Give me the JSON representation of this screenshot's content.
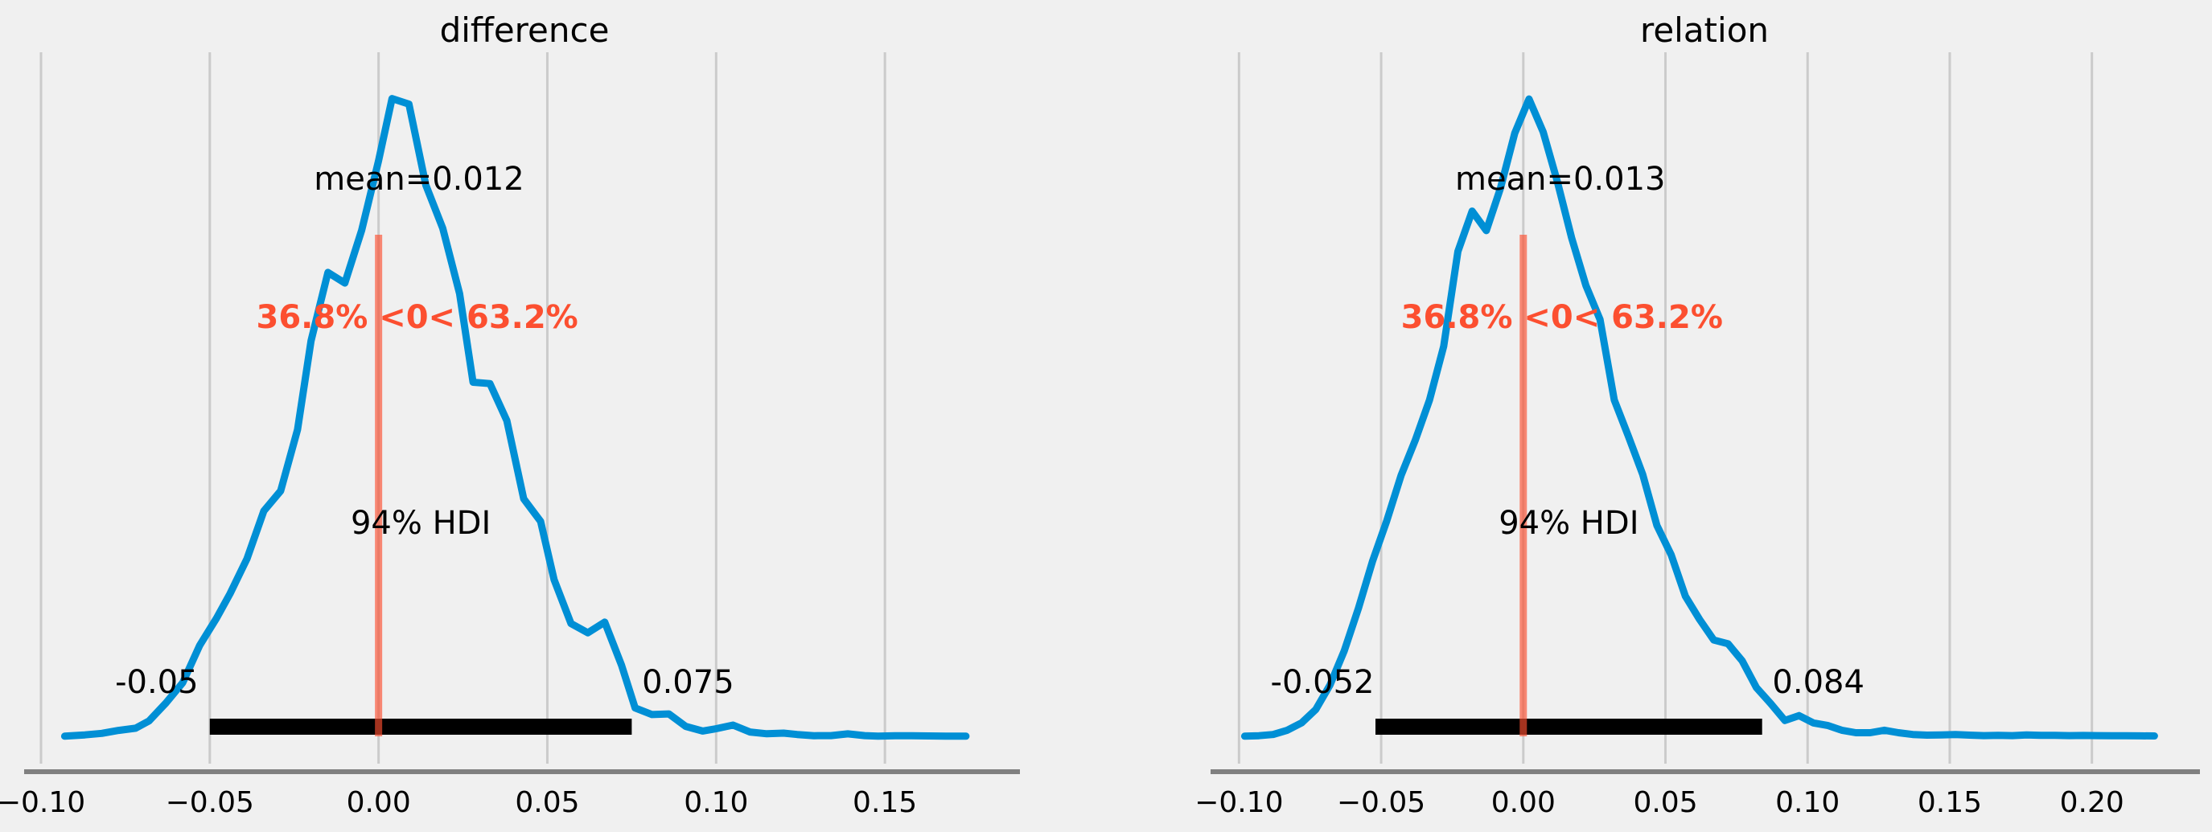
{
  "chart_data": [
    {
      "type": "area",
      "title": "difference",
      "xlim": [
        -0.105,
        0.19
      ],
      "x_ticks": [
        -0.1,
        -0.05,
        0.0,
        0.05,
        0.1,
        0.15
      ],
      "x_tick_labels": [
        "−0.10",
        "−0.05",
        "0.00",
        "0.05",
        "0.10",
        "0.15"
      ],
      "grid": true,
      "series": [
        {
          "x": [
            -0.093,
            -0.087,
            -0.082,
            -0.077,
            -0.072,
            -0.068,
            -0.063,
            -0.058,
            -0.053,
            -0.048,
            -0.044,
            -0.039,
            -0.034,
            -0.029,
            -0.024,
            -0.02,
            -0.015,
            -0.01,
            -0.005,
            0.0,
            0.004,
            0.009,
            0.014,
            0.019,
            0.024,
            0.028,
            0.033,
            0.038,
            0.043,
            0.048,
            0.052,
            0.057,
            0.062,
            0.067,
            0.072,
            0.076,
            0.081,
            0.086,
            0.091,
            0.096,
            0.1,
            0.105,
            0.11,
            0.115,
            0.12,
            0.124,
            0.129,
            0.134,
            0.139,
            0.144,
            0.148,
            0.153,
            0.158,
            0.163,
            0.168,
            0.174
          ],
          "y": [
            0.001,
            0.012,
            0.024,
            0.048,
            0.066,
            0.125,
            0.271,
            0.436,
            0.737,
            0.959,
            1.158,
            1.44,
            1.829,
            1.991,
            2.489,
            3.209,
            3.764,
            3.678,
            4.108,
            4.669,
            5.175,
            5.13,
            4.472,
            4.123,
            3.591,
            2.873,
            2.862,
            2.562,
            1.927,
            1.744,
            1.27,
            0.915,
            0.84,
            0.927,
            0.575,
            0.23,
            0.177,
            0.182,
            0.081,
            0.043,
            0.062,
            0.091,
            0.035,
            0.021,
            0.026,
            0.015,
            0.005,
            0.006,
            0.02,
            0.006,
            0.002,
            0.005,
            0.005,
            0.003,
            0.002,
            0.001
          ]
        }
      ],
      "ylim": [
        0,
        5.27
      ],
      "mean": 0.012,
      "mean_label": "mean=0.012",
      "ref_val": 0,
      "ref_label": "36.8% <0< 63.2%",
      "hdi": [
        -0.05,
        0.075
      ],
      "hdi_label": "94% HDI",
      "hdi_low_label": "-0.05",
      "hdi_high_label": "0.075"
    },
    {
      "type": "area",
      "title": "relation",
      "xlim": [
        -0.11,
        0.238
      ],
      "x_ticks": [
        -0.1,
        -0.05,
        0.0,
        0.05,
        0.1,
        0.15,
        0.2
      ],
      "x_tick_labels": [
        "−0.10",
        "−0.05",
        "0.00",
        "0.05",
        "0.10",
        "0.15",
        "0.20"
      ],
      "grid": true,
      "series": [
        {
          "x": [
            -0.098,
            -0.093,
            -0.088,
            -0.083,
            -0.078,
            -0.073,
            -0.068,
            -0.063,
            -0.058,
            -0.053,
            -0.048,
            -0.043,
            -0.038,
            -0.033,
            -0.028,
            -0.023,
            -0.018,
            -0.013,
            -0.008,
            -0.003,
            0.002,
            0.007,
            0.012,
            0.017,
            0.022,
            0.027,
            0.032,
            0.037,
            0.042,
            0.047,
            0.052,
            0.057,
            0.062,
            0.067,
            0.072,
            0.077,
            0.082,
            0.087,
            0.092,
            0.097,
            0.102,
            0.107,
            0.112,
            0.117,
            0.122,
            0.127,
            0.132,
            0.137,
            0.142,
            0.147,
            0.152,
            0.157,
            0.162,
            0.167,
            0.172,
            0.177,
            0.182,
            0.187,
            0.192,
            0.197,
            0.202,
            0.207,
            0.212,
            0.217,
            0.222
          ],
          "y": [
            0.001,
            0.005,
            0.015,
            0.05,
            0.11,
            0.22,
            0.42,
            0.7,
            1.05,
            1.44,
            1.77,
            2.14,
            2.43,
            2.76,
            3.2,
            3.98,
            4.31,
            4.15,
            4.5,
            4.95,
            5.23,
            4.96,
            4.55,
            4.09,
            3.7,
            3.42,
            2.76,
            2.46,
            2.15,
            1.73,
            1.49,
            1.15,
            0.96,
            0.79,
            0.76,
            0.62,
            0.4,
            0.27,
            0.13,
            0.17,
            0.11,
            0.09,
            0.05,
            0.03,
            0.03,
            0.05,
            0.03,
            0.015,
            0.01,
            0.012,
            0.015,
            0.01,
            0.006,
            0.008,
            0.006,
            0.012,
            0.008,
            0.008,
            0.006,
            0.007,
            0.006,
            0.005,
            0.005,
            0.004,
            0.003
          ]
        }
      ],
      "ylim": [
        0,
        5.33
      ],
      "mean": 0.013,
      "mean_label": "mean=0.013",
      "ref_val": 0,
      "ref_label": "36.8% <0< 63.2%",
      "hdi": [
        -0.052,
        0.084
      ],
      "hdi_label": "94% HDI",
      "hdi_low_label": "-0.052",
      "hdi_high_label": "0.084"
    }
  ],
  "colors": {
    "background": "#f0f0f0",
    "kde": "#008fd5",
    "reference": "#fc4f30",
    "hdi": "#000000",
    "axis": "#808080",
    "grid": "#cbcbcb"
  }
}
